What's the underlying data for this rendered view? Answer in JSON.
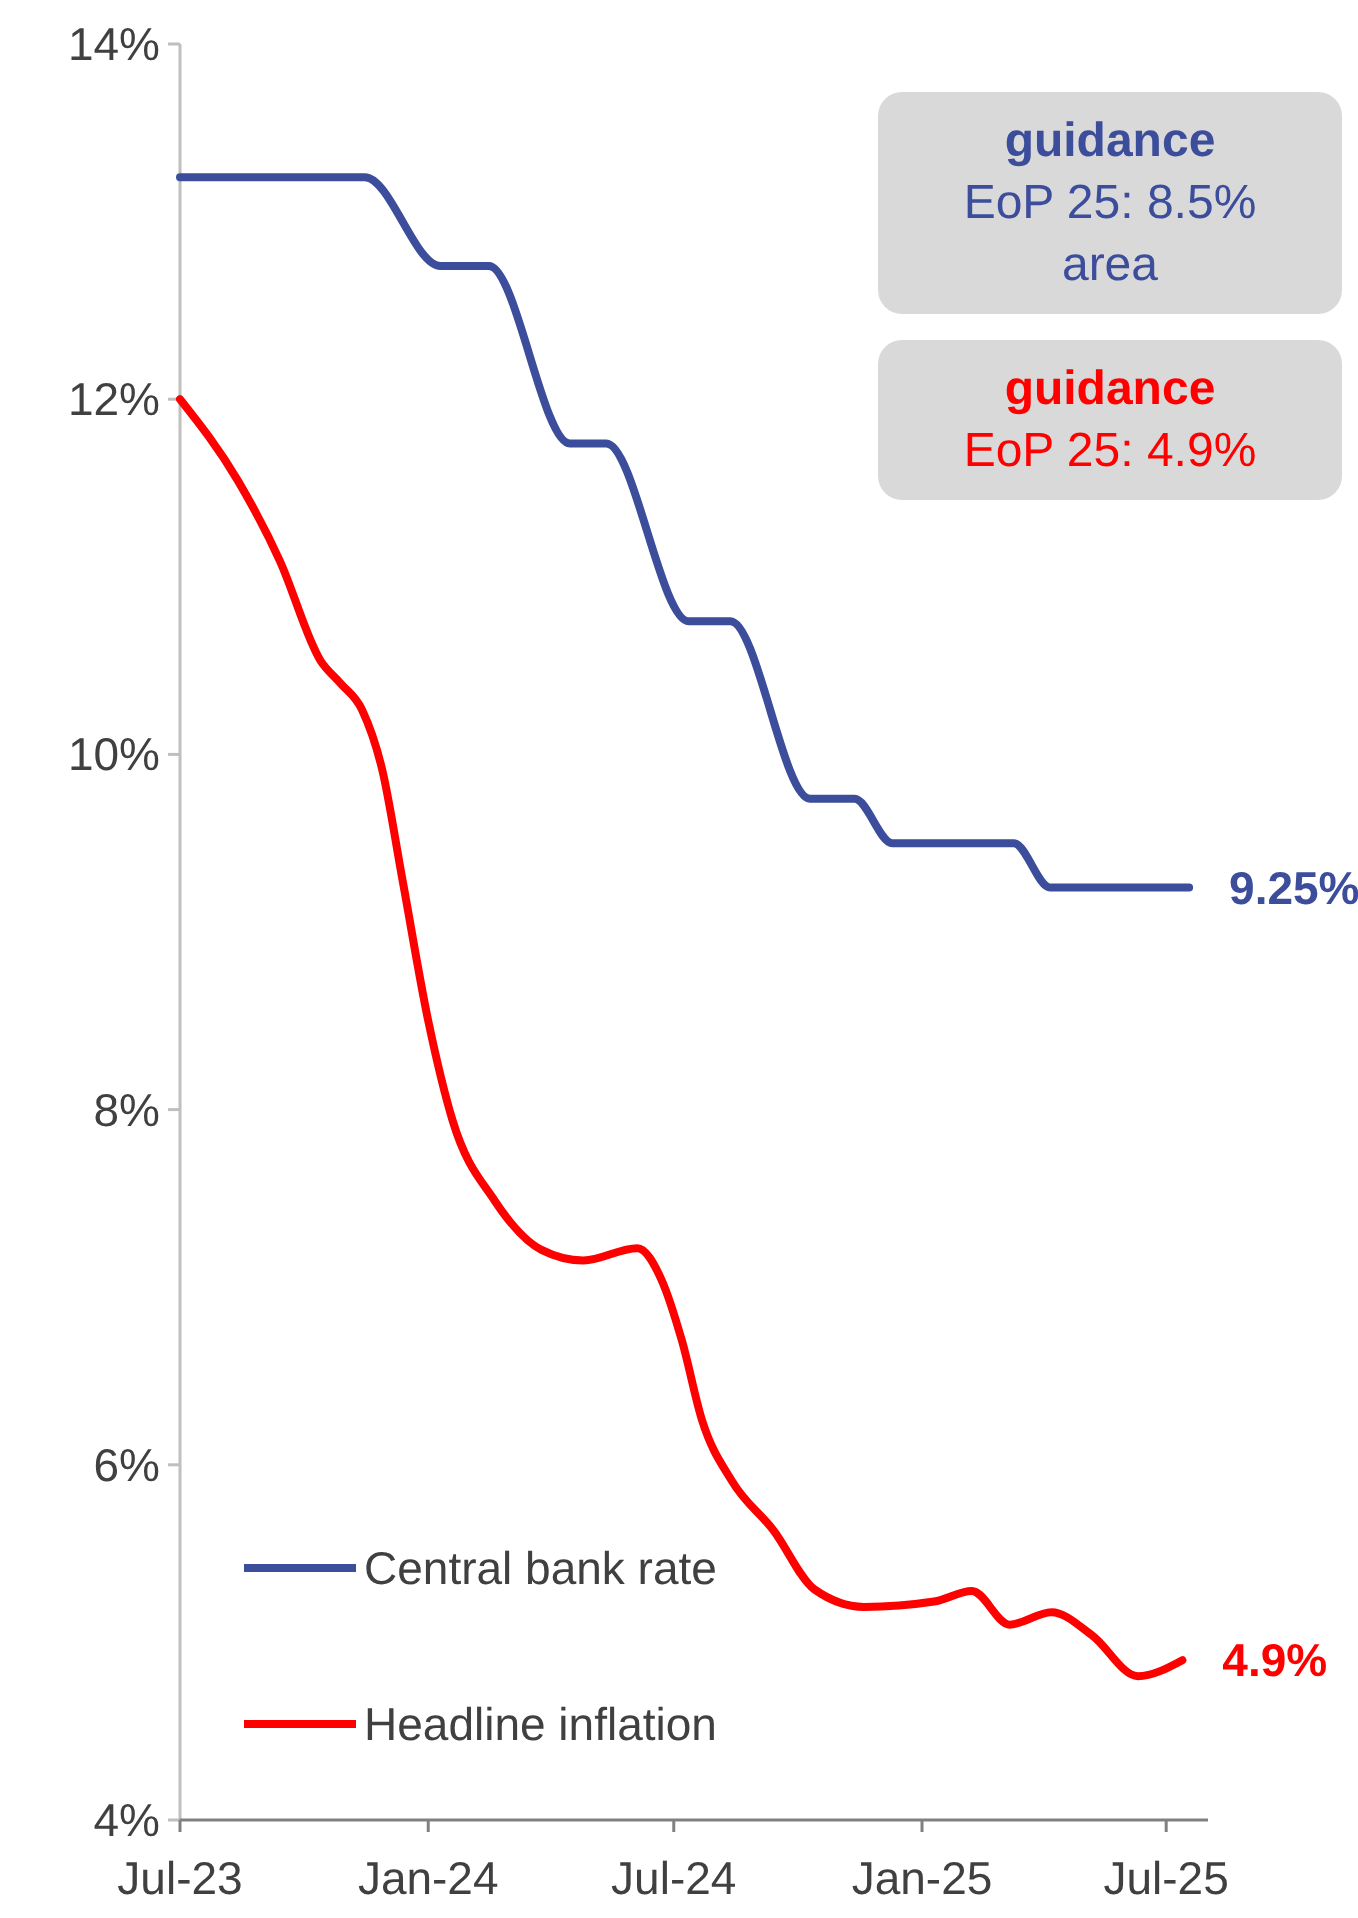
{
  "chart_data": {
    "type": "line",
    "series": [
      {
        "name": "Central bank rate",
        "color": "#3b4d9b",
        "x": [
          "2023-07-01",
          "2023-11-15",
          "2024-01-10",
          "2024-02-15",
          "2024-04-15",
          "2024-05-12",
          "2024-07-12",
          "2024-08-12",
          "2024-10-10",
          "2024-11-12",
          "2024-12-10",
          "2025-03-10",
          "2025-04-06",
          "2025-07-18"
        ],
        "values": [
          13.25,
          13.25,
          12.75,
          12.75,
          11.75,
          11.75,
          10.75,
          10.75,
          9.75,
          9.75,
          9.5,
          9.5,
          9.25,
          9.25
        ]
      },
      {
        "name": "Headline inflation",
        "color": "#ff0000",
        "x": [
          "2023-07-01",
          "2023-08-13",
          "2023-09-13",
          "2023-10-13",
          "2023-10-28",
          "2023-11-13",
          "2023-11-28",
          "2023-12-13",
          "2024-01-01",
          "2024-01-19",
          "2024-02-19",
          "2024-03-25",
          "2024-04-25",
          "2024-06-04",
          "2024-06-22",
          "2024-07-07",
          "2024-07-22",
          "2024-08-13",
          "2024-09-13",
          "2024-10-13",
          "2024-11-19",
          "2025-01-10",
          "2025-02-07",
          "2025-03-07",
          "2025-04-07",
          "2025-05-07",
          "2025-06-10",
          "2025-07-13"
        ],
        "values": [
          12.0,
          11.54,
          11.09,
          10.53,
          10.4,
          10.25,
          9.91,
          9.29,
          8.5,
          7.94,
          7.49,
          7.21,
          7.15,
          7.22,
          7.04,
          6.7,
          6.25,
          5.91,
          5.63,
          5.3,
          5.2,
          5.23,
          5.29,
          5.1,
          5.17,
          5.04,
          4.81,
          4.9
        ]
      }
    ],
    "xlim": [
      "2023-07-01",
      "2025-08-01"
    ],
    "xticks": [
      {
        "value": "2023-07-01",
        "label": "Jul-23"
      },
      {
        "value": "2024-01-01",
        "label": "Jan-24"
      },
      {
        "value": "2024-07-01",
        "label": "Jul-24"
      },
      {
        "value": "2025-01-01",
        "label": "Jan-25"
      },
      {
        "value": "2025-07-01",
        "label": "Jul-25"
      }
    ],
    "ylim": [
      4,
      14
    ],
    "yticks": [
      {
        "value": 4,
        "label": "4%"
      },
      {
        "value": 6,
        "label": "6%"
      },
      {
        "value": 8,
        "label": "8%"
      },
      {
        "value": 10,
        "label": "10%"
      },
      {
        "value": 12,
        "label": "12%"
      },
      {
        "value": 14,
        "label": "14%"
      }
    ],
    "annotations": [
      "guidance\nEoP 25: 8.5%\narea",
      "guidance\nEoP 25: 4.9%",
      {
        "text": "9.25%",
        "x": "2025-07-18",
        "y": 9.25
      },
      {
        "text": "4.9%",
        "x": "2025-07-13",
        "y": 4.9
      }
    ],
    "legend": "bottom left",
    "grid": false,
    "marker": "none",
    "line_style": "solid"
  }
}
